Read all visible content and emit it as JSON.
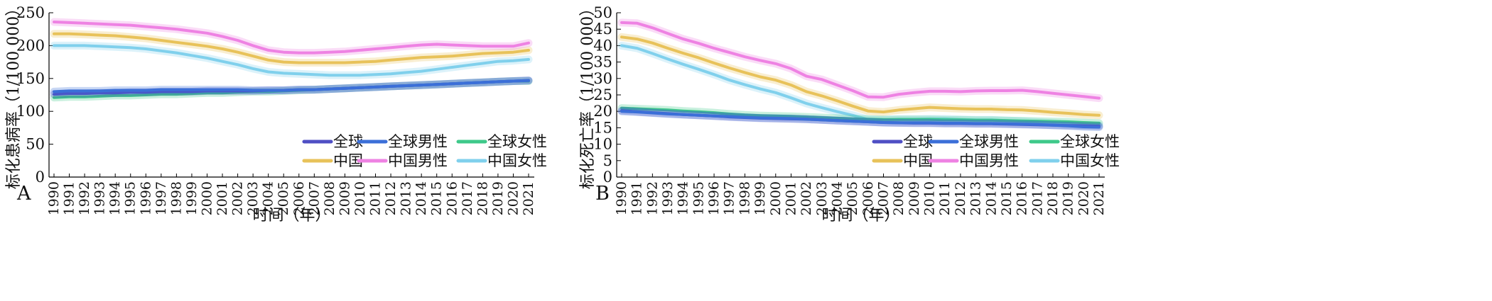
{
  "chart_data": [
    {
      "type": "line",
      "panel_label": "A",
      "title": "",
      "xlabel": "时间（年）",
      "ylabel": "标化患病率（1/100 000）",
      "ylim": [
        0,
        250
      ],
      "yticks": [
        0,
        50,
        100,
        150,
        200,
        250
      ],
      "x": [
        "1990",
        "1991",
        "1992",
        "1993",
        "1994",
        "1995",
        "1996",
        "1997",
        "1998",
        "1999",
        "2000",
        "2001",
        "2002",
        "2003",
        "2004",
        "2005",
        "2006",
        "2007",
        "2008",
        "2009",
        "2010",
        "2011",
        "2012",
        "2013",
        "2014",
        "2015",
        "2016",
        "2017",
        "2018",
        "2019",
        "2020",
        "2021"
      ],
      "legend_position": "bottom-right",
      "series": [
        {
          "name": "全球",
          "color": "#4f4fc4",
          "values": [
            126,
            127,
            127,
            128,
            128,
            129,
            129,
            130,
            130,
            130,
            131,
            131,
            131,
            131,
            132,
            132,
            133,
            133,
            134,
            135,
            136,
            137,
            138,
            139,
            140,
            141,
            142,
            143,
            144,
            145,
            146,
            147
          ]
        },
        {
          "name": "全球男性",
          "color": "#3b6fd8",
          "values": [
            130,
            131,
            131,
            131,
            132,
            132,
            132,
            133,
            133,
            133,
            133,
            133,
            133,
            132,
            132,
            132,
            133,
            133,
            134,
            135,
            136,
            137,
            138,
            139,
            140,
            141,
            142,
            143,
            144,
            145,
            146,
            147
          ]
        },
        {
          "name": "全球女性",
          "color": "#3ec98a",
          "values": [
            121,
            122,
            122,
            123,
            124,
            124,
            125,
            126,
            126,
            127,
            128,
            128,
            129,
            130,
            130,
            131,
            132,
            133,
            134,
            135,
            136,
            137,
            138,
            139,
            140,
            141,
            142,
            143,
            144,
            145,
            146,
            146
          ]
        },
        {
          "name": "中国",
          "color": "#e8c25a",
          "values": [
            218,
            218,
            217,
            216,
            215,
            213,
            211,
            208,
            205,
            202,
            199,
            195,
            190,
            184,
            178,
            175,
            174,
            174,
            174,
            174,
            175,
            176,
            178,
            180,
            182,
            183,
            184,
            186,
            188,
            189,
            190,
            193
          ]
        },
        {
          "name": "中国男性",
          "color": "#ee82e3",
          "values": [
            236,
            235,
            234,
            233,
            232,
            231,
            229,
            227,
            225,
            222,
            219,
            214,
            208,
            200,
            193,
            190,
            189,
            189,
            190,
            191,
            193,
            195,
            197,
            199,
            201,
            202,
            201,
            200,
            199,
            199,
            199,
            204
          ]
        },
        {
          "name": "中国女性",
          "color": "#80d0ec",
          "values": [
            200,
            200,
            200,
            199,
            198,
            197,
            195,
            192,
            189,
            185,
            181,
            176,
            171,
            165,
            160,
            158,
            157,
            156,
            155,
            155,
            155,
            156,
            157,
            159,
            161,
            164,
            167,
            170,
            173,
            176,
            177,
            179
          ]
        }
      ]
    },
    {
      "type": "line",
      "panel_label": "B",
      "title": "",
      "xlabel": "时间（年）",
      "ylabel": "标化死亡率（1/100 000）",
      "ylim": [
        0,
        50
      ],
      "yticks": [
        0,
        5,
        10,
        15,
        20,
        25,
        30,
        35,
        40,
        45,
        50
      ],
      "x": [
        "1990",
        "1991",
        "1992",
        "1993",
        "1994",
        "1995",
        "1996",
        "1997",
        "1998",
        "1999",
        "2000",
        "2001",
        "2002",
        "2003",
        "2004",
        "2005",
        "2006",
        "2007",
        "2008",
        "2009",
        "2010",
        "2011",
        "2012",
        "2013",
        "2014",
        "2015",
        "2016",
        "2017",
        "2018",
        "2019",
        "2020",
        "2021"
      ],
      "legend_position": "bottom-right",
      "series": [
        {
          "name": "全球",
          "color": "#4f4fc4",
          "values": [
            20.2,
            19.9,
            19.6,
            19.3,
            19.0,
            18.8,
            18.6,
            18.3,
            18.1,
            17.9,
            17.8,
            17.7,
            17.6,
            17.4,
            17.2,
            17.0,
            16.8,
            16.6,
            16.5,
            16.4,
            16.4,
            16.3,
            16.3,
            16.2,
            16.2,
            16.1,
            16.0,
            15.9,
            15.8,
            15.7,
            15.6,
            15.5
          ]
        },
        {
          "name": "全球男性",
          "color": "#3b6fd8",
          "values": [
            20.0,
            19.8,
            19.5,
            19.2,
            19.0,
            18.8,
            18.6,
            18.4,
            18.2,
            18.0,
            17.9,
            17.8,
            17.6,
            17.4,
            17.2,
            17.0,
            16.8,
            16.6,
            16.5,
            16.5,
            16.5,
            16.4,
            16.4,
            16.3,
            16.3,
            16.2,
            16.1,
            16.0,
            15.8,
            15.6,
            15.3,
            15.2
          ]
        },
        {
          "name": "全球女性",
          "color": "#3ec98a",
          "values": [
            21.0,
            20.8,
            20.6,
            20.4,
            20.1,
            19.9,
            19.6,
            19.2,
            18.9,
            18.7,
            18.6,
            18.5,
            18.3,
            18.1,
            17.9,
            17.7,
            17.6,
            17.5,
            17.5,
            17.5,
            17.5,
            17.4,
            17.4,
            17.3,
            17.3,
            17.2,
            17.1,
            17.0,
            16.9,
            16.8,
            16.6,
            16.4
          ]
        },
        {
          "name": "中国",
          "color": "#e8c25a",
          "values": [
            42.6,
            42.0,
            40.8,
            39.2,
            37.7,
            36.3,
            34.7,
            33.2,
            31.8,
            30.5,
            29.5,
            28.0,
            26.0,
            24.7,
            23.2,
            21.6,
            20.1,
            19.8,
            20.4,
            20.8,
            21.2,
            21.0,
            20.8,
            20.7,
            20.7,
            20.5,
            20.4,
            20.1,
            19.7,
            19.4,
            19.0,
            18.8
          ]
        },
        {
          "name": "中国男性",
          "color": "#ee82e3",
          "values": [
            47.0,
            46.8,
            45.4,
            43.7,
            42.0,
            40.7,
            39.2,
            37.9,
            36.6,
            35.5,
            34.5,
            33.0,
            30.7,
            29.7,
            28.0,
            26.3,
            24.4,
            24.3,
            25.2,
            25.7,
            26.1,
            26.1,
            26.0,
            26.2,
            26.3,
            26.3,
            26.4,
            26.0,
            25.5,
            25.0,
            24.5,
            24.0
          ]
        },
        {
          "name": "中国女性",
          "color": "#80d0ec",
          "values": [
            40.0,
            39.2,
            37.6,
            35.9,
            34.3,
            32.8,
            31.2,
            29.5,
            28.1,
            26.8,
            25.7,
            24.1,
            22.4,
            21.1,
            19.9,
            18.8,
            17.5,
            17.4,
            17.6,
            17.6,
            17.7,
            17.7,
            17.5,
            17.4,
            17.4,
            17.2,
            17.0,
            16.7,
            16.4,
            16.1,
            15.8,
            15.8
          ]
        }
      ]
    }
  ]
}
